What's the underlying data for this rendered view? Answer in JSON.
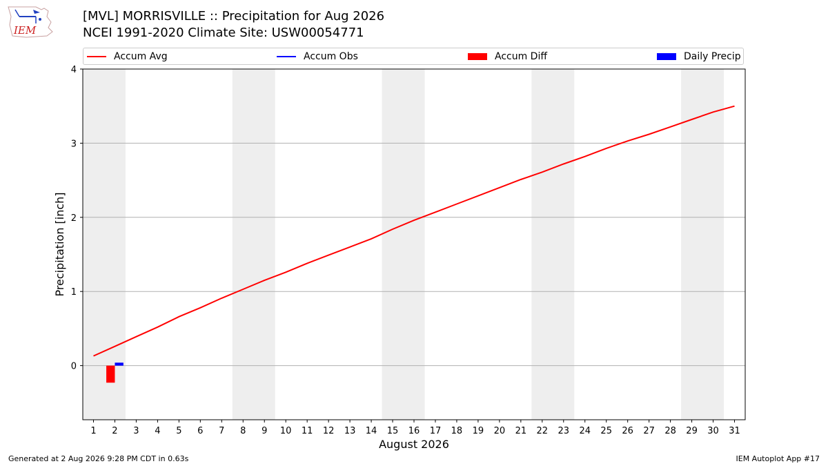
{
  "header": {
    "title_line1": "[MVL] MORRISVILLE :: Precipitation for Aug 2026",
    "title_line2": "NCEI 1991-2020 Climate Site: USW00054771"
  },
  "logo": {
    "text": "IEM",
    "icon": "iem-logo-icon"
  },
  "legend": [
    {
      "label": "Accum Avg",
      "kind": "line",
      "color": "#ff0000"
    },
    {
      "label": "Accum Obs",
      "kind": "line",
      "color": "#0000ff"
    },
    {
      "label": "Accum Diff",
      "kind": "box",
      "color": "#ff0000"
    },
    {
      "label": "Daily Precip",
      "kind": "box",
      "color": "#0000ff"
    }
  ],
  "footer": {
    "left": "Generated at 2 Aug 2026 9:28 PM CDT in 0.63s",
    "right": "IEM Autoplot App #17"
  },
  "chart_data": {
    "type": "line",
    "xlabel": "August 2026",
    "ylabel": "Precipitation [inch]",
    "x": [
      1,
      2,
      3,
      4,
      5,
      6,
      7,
      8,
      9,
      10,
      11,
      12,
      13,
      14,
      15,
      16,
      17,
      18,
      19,
      20,
      21,
      22,
      23,
      24,
      25,
      26,
      27,
      28,
      29,
      30,
      31
    ],
    "ylim": [
      -0.73,
      4.0
    ],
    "yticks": [
      0,
      1,
      2,
      3,
      4
    ],
    "grid": "horizontal",
    "weekend_shading": [
      [
        1,
        2
      ],
      [
        8,
        9
      ],
      [
        15,
        16
      ],
      [
        22,
        23
      ],
      [
        29,
        30
      ]
    ],
    "series": [
      {
        "name": "Accum Avg",
        "type": "line",
        "color": "#ff0000",
        "x": [
          1,
          2,
          3,
          4,
          5,
          6,
          7,
          8,
          9,
          10,
          11,
          12,
          13,
          14,
          15,
          16,
          17,
          18,
          19,
          20,
          21,
          22,
          23,
          24,
          25,
          26,
          27,
          28,
          29,
          30,
          31
        ],
        "values": [
          0.13,
          0.26,
          0.39,
          0.52,
          0.66,
          0.78,
          0.91,
          1.03,
          1.15,
          1.26,
          1.38,
          1.49,
          1.6,
          1.71,
          1.84,
          1.96,
          2.07,
          2.18,
          2.29,
          2.4,
          2.51,
          2.61,
          2.72,
          2.82,
          2.93,
          3.03,
          3.12,
          3.22,
          3.32,
          3.42,
          3.5
        ]
      },
      {
        "name": "Accum Diff",
        "type": "bar",
        "color": "#ff0000",
        "x": [
          2
        ],
        "values": [
          -0.23
        ]
      },
      {
        "name": "Daily Precip",
        "type": "bar",
        "color": "#0000ff",
        "x": [
          2
        ],
        "values": [
          0.04
        ]
      }
    ]
  }
}
